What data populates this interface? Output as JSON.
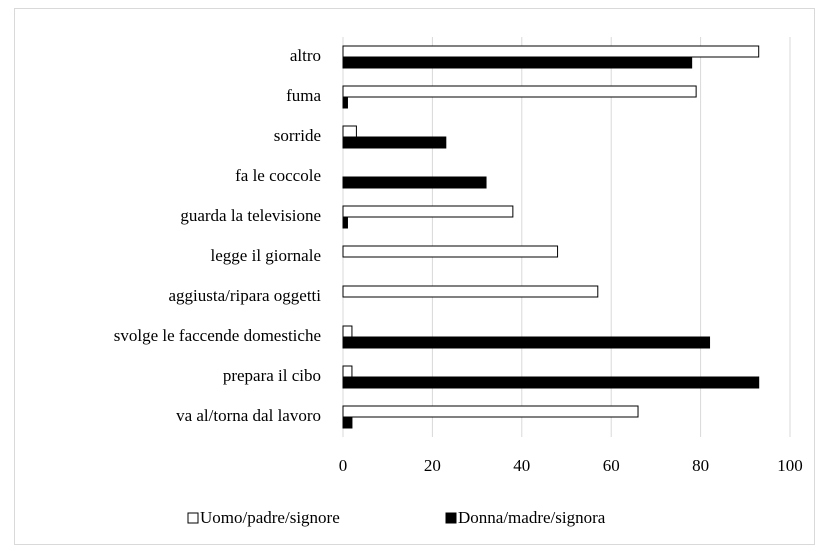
{
  "chart_data": {
    "type": "barh",
    "categories": [
      "altro",
      "fuma",
      "sorride",
      "fa le coccole",
      "guarda la televisione",
      "legge il giornale",
      "aggiusta/ripara oggetti",
      "svolge le faccende domestiche",
      "prepara il cibo",
      "va al/torna dal lavoro"
    ],
    "series": [
      {
        "name": "Uomo/padre/signore",
        "color": "#ffffff",
        "values": [
          93,
          79,
          3,
          0,
          38,
          48,
          57,
          2,
          2,
          66
        ]
      },
      {
        "name": "Donna/madre/signora",
        "color": "#000000",
        "values": [
          78,
          1,
          23,
          32,
          1,
          0,
          0,
          82,
          93,
          2
        ]
      }
    ],
    "xlim": [
      0,
      100
    ],
    "xticks": [
      0,
      20,
      40,
      60,
      80,
      100
    ],
    "grid": true,
    "legend": "bottom"
  }
}
